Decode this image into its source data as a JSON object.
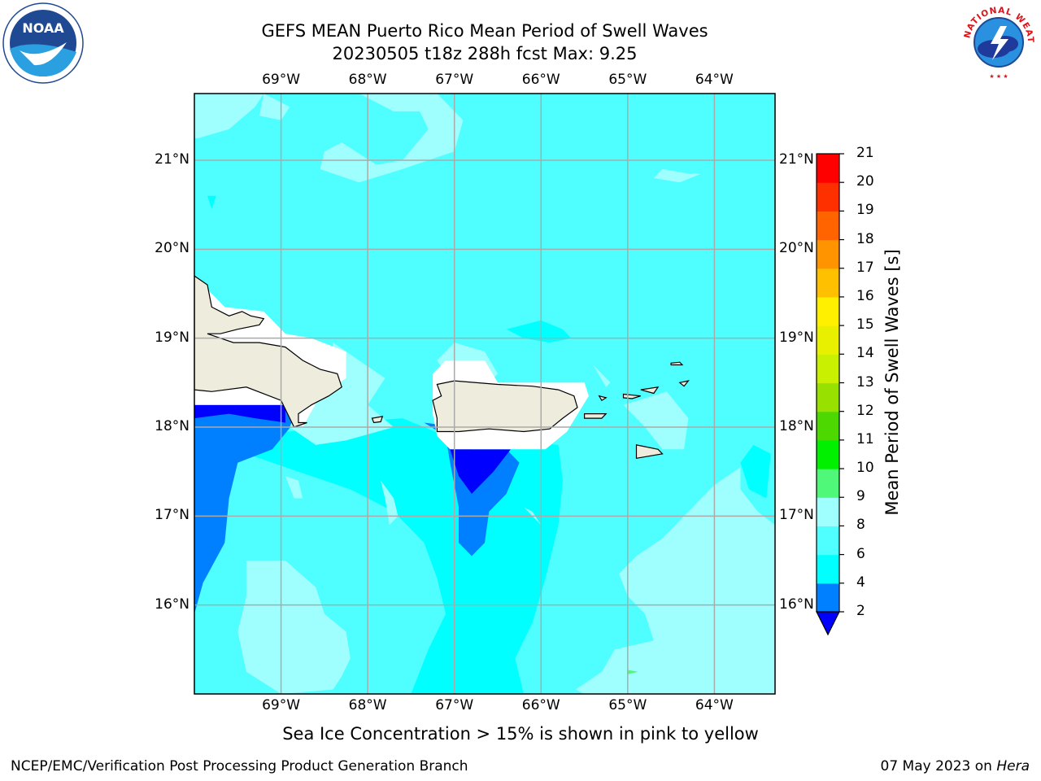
{
  "header": {
    "title_line1": "GEFS MEAN Puerto Rico Mean Period of Swell Waves",
    "title_line2": "20230505 t18z 288h fcst   Max: 9.25"
  },
  "logos": {
    "left": {
      "name": "noaa-logo",
      "text": "NOAA",
      "color": "#1f4a93"
    },
    "right": {
      "name": "national-weather-service-logo",
      "text": "NATIONAL WEATHER SERVICE",
      "color": "#d9151b"
    }
  },
  "map": {
    "lon_range": [
      -70,
      -63.3
    ],
    "lat_range": [
      15,
      21.75
    ],
    "lon_ticks": [
      "69°W",
      "68°W",
      "67°W",
      "66°W",
      "65°W",
      "64°W"
    ],
    "lat_ticks": [
      "21°N",
      "20°N",
      "19°N",
      "18°N",
      "17°N",
      "16°N"
    ],
    "grid": true,
    "background_color": "#4fffff",
    "land_color": "#eeecdc"
  },
  "chart_data": {
    "type": "heatmap",
    "title": "GEFS MEAN Puerto Rico Mean Period of Swell Waves",
    "max_value": 9.25,
    "colorbar": {
      "label": "Mean Period of Swell Waves [s]",
      "ticks": [
        "2",
        "4",
        "6",
        "8",
        "9",
        "10",
        "11",
        "12",
        "13",
        "14",
        "15",
        "16",
        "17",
        "18",
        "19",
        "20",
        "21"
      ],
      "colors": [
        "#0000ff",
        "#0080ff",
        "#00ffff",
        "#4fffff",
        "#9ffffe",
        "#50f879",
        "#00f000",
        "#4cd800",
        "#98e000",
        "#c8f000",
        "#e8f000",
        "#fff000",
        "#ffc000",
        "#ff9400",
        "#ff6400",
        "#ff3000",
        "#ff0000"
      ],
      "extend_min_color": "#0000ff"
    }
  },
  "notes": {
    "sea_ice": "Sea Ice Concentration > 15% is shown in pink to yellow"
  },
  "footer": {
    "left": "NCEP/EMC/Verification Post Processing Product Generation Branch",
    "right_prefix": "07 May 2023 on ",
    "right_host": "Hera"
  }
}
